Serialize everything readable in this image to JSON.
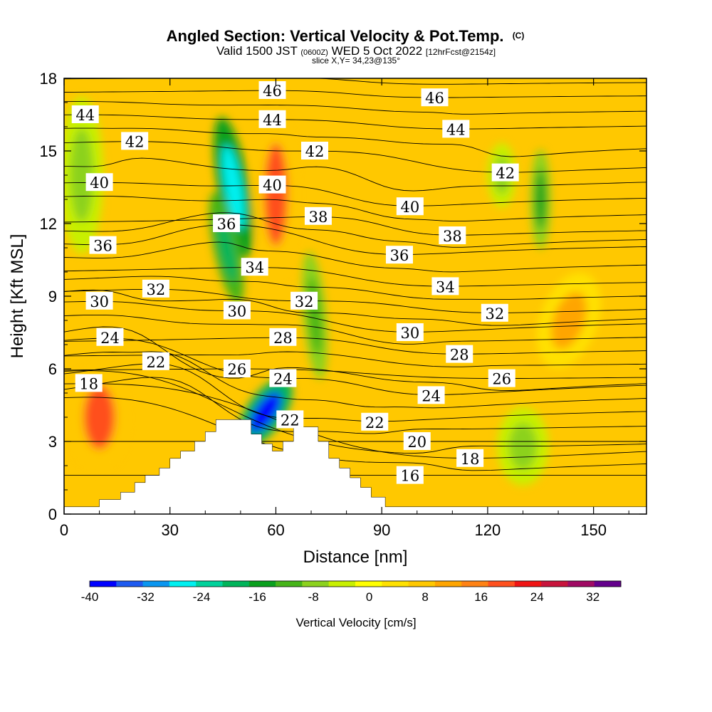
{
  "chart_data": {
    "type": "heatmap",
    "title": "Angled Section: Vertical Velocity & Pot.Temp.",
    "title_suffix": "(C)",
    "subtitle_parts": [
      "Valid 1500 JST",
      "(0600Z)",
      "WED 5 Oct 2022",
      "[12hrFcst@2154z]"
    ],
    "slice_text": "slice X,Y= 34,23@135°",
    "xlabel": "Distance [nm]",
    "ylabel": "Height [Kft MSL]",
    "xlim": [
      0,
      165
    ],
    "ylim": [
      0,
      18
    ],
    "x_ticks": [
      "0",
      "30",
      "60",
      "90",
      "120",
      "150"
    ],
    "x_tick_values": [
      0,
      30,
      60,
      90,
      120,
      150
    ],
    "y_ticks": [
      "0",
      "3",
      "6",
      "9",
      "12",
      "15",
      "18"
    ],
    "y_tick_values": [
      0,
      3,
      6,
      9,
      12,
      15,
      18
    ],
    "colorbar": {
      "label": "Vertical Velocity [cm/s]",
      "ticks": [
        "-40",
        "-32",
        "-24",
        "-16",
        "-8",
        "0",
        "8",
        "16",
        "24",
        "32"
      ],
      "tick_values": [
        -40,
        -32,
        -24,
        -16,
        -8,
        0,
        8,
        16,
        24,
        32
      ],
      "min": -40,
      "max": 36,
      "step": 4,
      "colors": [
        "#0000ff",
        "#1e5af0",
        "#0a96f0",
        "#00f0f0",
        "#00d29b",
        "#00b45a",
        "#0aa01e",
        "#46b419",
        "#8cd21e",
        "#c8f000",
        "#ffff00",
        "#ffe100",
        "#ffc800",
        "#ffa500",
        "#ff8214",
        "#ff501e",
        "#f01414",
        "#c8143c",
        "#a00a64",
        "#64008c"
      ]
    },
    "velocity_features": [
      {
        "x": 10,
        "y": 4,
        "value": 22
      },
      {
        "x": 48,
        "y": 13.5,
        "value": -28
      },
      {
        "x": 46,
        "y": 11,
        "value": -20
      },
      {
        "x": 57,
        "y": 4.2,
        "value": -38
      },
      {
        "x": 60,
        "y": 13.2,
        "value": 22
      },
      {
        "x": 71,
        "y": 8.2,
        "value": -12
      },
      {
        "x": 135,
        "y": 13,
        "value": -14
      },
      {
        "x": 124,
        "y": 14,
        "value": -6
      },
      {
        "x": 5,
        "y": 14,
        "value": -6
      },
      {
        "x": 130,
        "y": 2.8,
        "value": -6
      },
      {
        "x": 143,
        "y": 8,
        "value": 14
      }
    ],
    "theta_contour_labels": [
      {
        "x": 6,
        "y": 16.5,
        "text": "44"
      },
      {
        "x": 20,
        "y": 15.4,
        "text": "42"
      },
      {
        "x": 10,
        "y": 13.7,
        "text": "40"
      },
      {
        "x": 11,
        "y": 11.1,
        "text": "36"
      },
      {
        "x": 10,
        "y": 8.8,
        "text": "30"
      },
      {
        "x": 26,
        "y": 9.3,
        "text": "32"
      },
      {
        "x": 13,
        "y": 7.3,
        "text": "24"
      },
      {
        "x": 26,
        "y": 6.3,
        "text": "22"
      },
      {
        "x": 7,
        "y": 5.4,
        "text": "18"
      },
      {
        "x": 59,
        "y": 17.5,
        "text": "46"
      },
      {
        "x": 59,
        "y": 16.3,
        "text": "44"
      },
      {
        "x": 71,
        "y": 15,
        "text": "42"
      },
      {
        "x": 59,
        "y": 13.6,
        "text": "40"
      },
      {
        "x": 72,
        "y": 12.3,
        "text": "38"
      },
      {
        "x": 46,
        "y": 12,
        "text": "36"
      },
      {
        "x": 54,
        "y": 10.2,
        "text": "34"
      },
      {
        "x": 49,
        "y": 8.4,
        "text": "30"
      },
      {
        "x": 68,
        "y": 8.8,
        "text": "32"
      },
      {
        "x": 62,
        "y": 7.3,
        "text": "28"
      },
      {
        "x": 49,
        "y": 6,
        "text": "26"
      },
      {
        "x": 62,
        "y": 5.6,
        "text": "24"
      },
      {
        "x": 64,
        "y": 3.9,
        "text": "22"
      },
      {
        "x": 105,
        "y": 17.2,
        "text": "46"
      },
      {
        "x": 111,
        "y": 15.9,
        "text": "44"
      },
      {
        "x": 125,
        "y": 14.1,
        "text": "42"
      },
      {
        "x": 98,
        "y": 12.7,
        "text": "40"
      },
      {
        "x": 110,
        "y": 11.5,
        "text": "38"
      },
      {
        "x": 95,
        "y": 10.7,
        "text": "36"
      },
      {
        "x": 108,
        "y": 9.4,
        "text": "34"
      },
      {
        "x": 122,
        "y": 8.3,
        "text": "32"
      },
      {
        "x": 98,
        "y": 7.5,
        "text": "30"
      },
      {
        "x": 112,
        "y": 6.6,
        "text": "28"
      },
      {
        "x": 124,
        "y": 5.6,
        "text": "26"
      },
      {
        "x": 104,
        "y": 4.9,
        "text": "24"
      },
      {
        "x": 88,
        "y": 3.8,
        "text": "22"
      },
      {
        "x": 100,
        "y": 3,
        "text": "20"
      },
      {
        "x": 115,
        "y": 2.3,
        "text": "18"
      },
      {
        "x": 98,
        "y": 1.6,
        "text": "16"
      }
    ],
    "terrain": [
      [
        0,
        0.3
      ],
      [
        10,
        0.3
      ],
      [
        10,
        0.6
      ],
      [
        16,
        0.6
      ],
      [
        16,
        0.9
      ],
      [
        20,
        0.9
      ],
      [
        20,
        1.3
      ],
      [
        23,
        1.3
      ],
      [
        23,
        1.6
      ],
      [
        27,
        1.6
      ],
      [
        27,
        1.9
      ],
      [
        30,
        1.9
      ],
      [
        30,
        2.3
      ],
      [
        33,
        2.3
      ],
      [
        33,
        2.6
      ],
      [
        37,
        2.6
      ],
      [
        37,
        3
      ],
      [
        40,
        3
      ],
      [
        40,
        3.4
      ],
      [
        43,
        3.4
      ],
      [
        43,
        3.9
      ],
      [
        53,
        3.9
      ],
      [
        53,
        3.3
      ],
      [
        56,
        3.3
      ],
      [
        56,
        2.9
      ],
      [
        59,
        2.9
      ],
      [
        59,
        2.6
      ],
      [
        62,
        2.6
      ],
      [
        62,
        3
      ],
      [
        65,
        3
      ],
      [
        65,
        3.6
      ],
      [
        72,
        3.6
      ],
      [
        72,
        3
      ],
      [
        75,
        3
      ],
      [
        75,
        2.3
      ],
      [
        78,
        2.3
      ],
      [
        78,
        1.9
      ],
      [
        81,
        1.9
      ],
      [
        81,
        1.5
      ],
      [
        84,
        1.5
      ],
      [
        84,
        1.1
      ],
      [
        87,
        1.1
      ],
      [
        87,
        0.7
      ],
      [
        91,
        0.7
      ],
      [
        91,
        0.3
      ],
      [
        165,
        0.3
      ],
      [
        165,
        0
      ],
      [
        0,
        0
      ]
    ]
  }
}
